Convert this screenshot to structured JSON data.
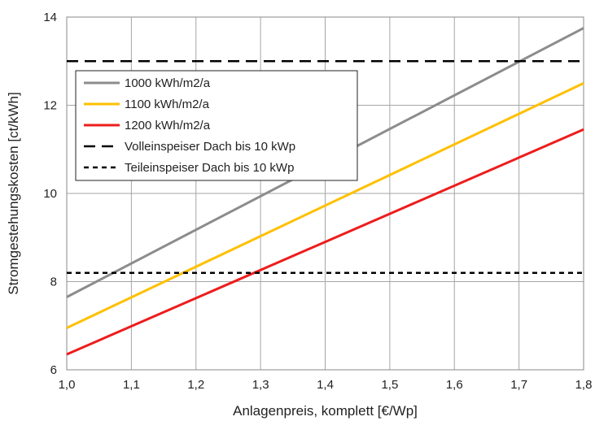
{
  "chart_data": {
    "type": "line",
    "title": "",
    "xlabel": "Anlagenpreis, komplett [€/Wp]",
    "ylabel": "Stromgestehungskosten [ct/kWh]",
    "xlim": [
      1.0,
      1.8
    ],
    "ylim": [
      6,
      14
    ],
    "x_ticks": [
      "1,0",
      "1,1",
      "1,2",
      "1,3",
      "1,4",
      "1,5",
      "1,6",
      "1,7",
      "1,8"
    ],
    "y_ticks": [
      "6",
      "8",
      "10",
      "12",
      "14"
    ],
    "grid": true,
    "legend_position": "top-left",
    "series": [
      {
        "name": "1000 kWh/m2/a",
        "color": "#8c8c8c",
        "dash": "solid",
        "x": [
          1.0,
          1.8
        ],
        "y": [
          7.65,
          13.75
        ]
      },
      {
        "name": "1100 kWh/m2/a",
        "color": "#ffc000",
        "dash": "solid",
        "x": [
          1.0,
          1.8
        ],
        "y": [
          6.95,
          12.5
        ]
      },
      {
        "name": "1200 kWh/m2/a",
        "color": "#ee1c1c",
        "dash": "solid",
        "x": [
          1.0,
          1.8
        ],
        "y": [
          6.35,
          11.45
        ]
      },
      {
        "name": "Volleinspeiser Dach bis 10 kWp",
        "color": "#000000",
        "dash": "long-dash",
        "x": [
          1.0,
          1.8
        ],
        "y": [
          13.0,
          13.0
        ]
      },
      {
        "name": "Teileinspeiser Dach bis 10 kWp",
        "color": "#000000",
        "dash": "short-dash",
        "x": [
          1.0,
          1.8
        ],
        "y": [
          8.2,
          8.2
        ]
      }
    ]
  }
}
